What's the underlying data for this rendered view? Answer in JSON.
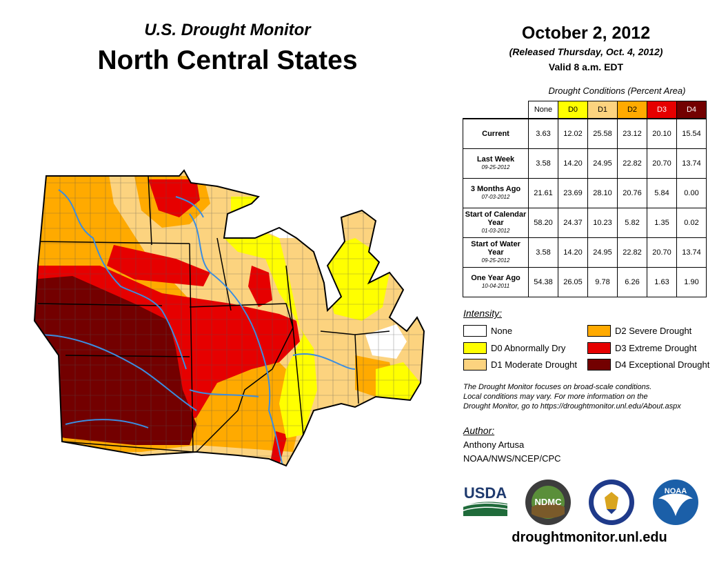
{
  "header": {
    "subtitle": "U.S. Drought Monitor",
    "title": "North Central States",
    "date": "October 2, 2012",
    "released": "(Released Thursday, Oct. 4, 2012)",
    "valid": "Valid 8 a.m. EDT"
  },
  "table": {
    "caption": "Drought Conditions (Percent Area)",
    "columns": [
      "None",
      "D0",
      "D1",
      "D2",
      "D3",
      "D4"
    ],
    "rows": [
      {
        "label": "Current",
        "date": "",
        "values": [
          "3.63",
          "12.02",
          "25.58",
          "23.12",
          "20.10",
          "15.54"
        ]
      },
      {
        "label": "Last Week",
        "date": "09-25-2012",
        "values": [
          "3.58",
          "14.20",
          "24.95",
          "22.82",
          "20.70",
          "13.74"
        ]
      },
      {
        "label": "3 Months Ago",
        "date": "07-03-2012",
        "values": [
          "21.61",
          "23.69",
          "28.10",
          "20.76",
          "5.84",
          "0.00"
        ]
      },
      {
        "label": "Start of Calendar Year",
        "date": "01-03-2012",
        "values": [
          "58.20",
          "24.37",
          "10.23",
          "5.82",
          "1.35",
          "0.02"
        ]
      },
      {
        "label": "Start of Water Year",
        "date": "09-25-2012",
        "values": [
          "3.58",
          "14.20",
          "24.95",
          "22.82",
          "20.70",
          "13.74"
        ]
      },
      {
        "label": "One Year Ago",
        "date": "10-04-2011",
        "values": [
          "54.38",
          "26.05",
          "9.78",
          "6.26",
          "1.63",
          "1.90"
        ]
      }
    ]
  },
  "colors": {
    "none": "#ffffff",
    "d0": "#ffff00",
    "d1": "#fcd37f",
    "d2": "#ffaa00",
    "d3": "#e60000",
    "d4": "#730000",
    "river": "#3b8de0",
    "border": "#555555"
  },
  "legend": {
    "title": "Intensity:",
    "items": {
      "none": "None",
      "d0": "D0 Abnormally Dry",
      "d1": "D1 Moderate Drought",
      "d2": "D2 Severe Drought",
      "d3": "D3 Extreme Drought",
      "d4": "D4 Exceptional Drought"
    }
  },
  "note": {
    "line1": "The Drought Monitor focuses on broad-scale conditions.",
    "line2": "Local conditions may vary. For more information on the",
    "line3": "Drought Monitor, go to https://droughtmonitor.unl.edu/About.aspx"
  },
  "author": {
    "title": "Author:",
    "name": "Anthony Artusa",
    "org": "NOAA/NWS/NCEP/CPC"
  },
  "logos": {
    "usda": "USDA",
    "ndmc": "NDMC",
    "noaa": "NOAA"
  },
  "footer_url": "droughtmonitor.unl.edu"
}
